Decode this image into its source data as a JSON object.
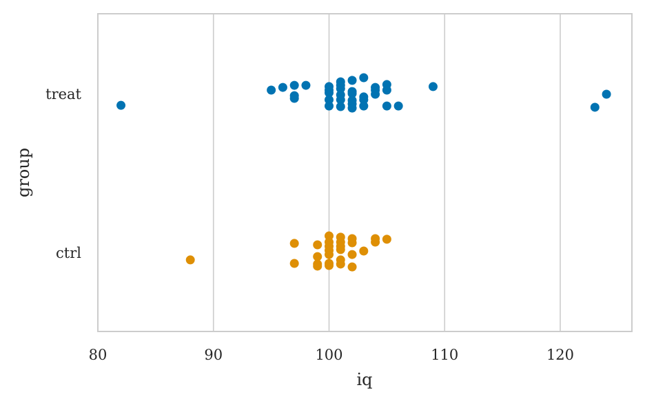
{
  "chart_data": {
    "type": "scatter",
    "subtype": "stripplot",
    "xlabel": "iq",
    "ylabel": "group",
    "xlim": [
      80,
      126.2
    ],
    "xticks": [
      80,
      90,
      100,
      110,
      120
    ],
    "xtick_labels": [
      "80",
      "90",
      "100",
      "110",
      "120"
    ],
    "categories": [
      "treat",
      "ctrl"
    ],
    "grid": "vertical",
    "series": [
      {
        "name": "treat",
        "color": "#0173b2",
        "x": [
          82,
          95,
          96,
          97,
          97,
          97,
          98,
          100,
          100,
          100,
          100,
          100,
          101,
          101,
          101,
          101,
          101,
          101,
          102,
          102,
          102,
          102,
          102,
          102,
          103,
          103,
          103,
          103,
          104,
          104,
          104,
          105,
          105,
          105,
          106,
          109,
          123,
          124
        ],
        "jitter": [
          0.07,
          -0.026,
          -0.043,
          -0.056,
          0.009,
          0.026,
          -0.056,
          -0.048,
          -0.026,
          -0.009,
          0.035,
          0.074,
          -0.078,
          -0.056,
          -0.035,
          0.004,
          0.035,
          0.078,
          -0.087,
          -0.017,
          -0.004,
          0.039,
          0.061,
          0.087,
          -0.104,
          0.017,
          0.035,
          0.074,
          -0.043,
          -0.026,
          0,
          -0.061,
          -0.026,
          0.074,
          0.074,
          -0.048,
          0.082,
          0
        ]
      },
      {
        "name": "ctrl",
        "color": "#de8f05",
        "x": [
          88,
          97,
          97,
          99,
          99,
          99,
          99,
          100,
          100,
          100,
          100,
          100,
          100,
          100,
          101,
          101,
          101,
          101,
          101,
          101,
          102,
          102,
          102,
          102,
          103,
          104,
          104,
          105
        ],
        "jitter": [
          0.043,
          -0.061,
          0.065,
          -0.052,
          0.022,
          0.069,
          0.082,
          -0.108,
          -0.069,
          -0.043,
          -0.017,
          0.009,
          0.065,
          0.078,
          -0.1,
          -0.069,
          -0.043,
          -0.022,
          0.043,
          0.069,
          -0.091,
          -0.065,
          0.009,
          0.087,
          -0.013,
          -0.091,
          -0.069,
          -0.087
        ]
      }
    ]
  }
}
